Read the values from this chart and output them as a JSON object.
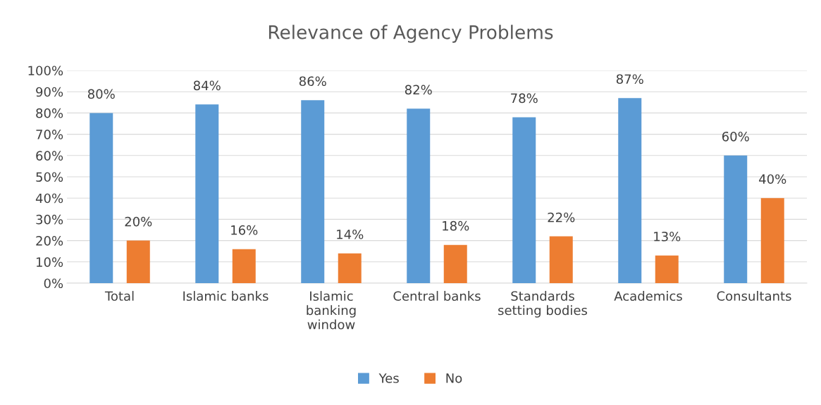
{
  "chart_data": {
    "type": "bar",
    "title": "Relevance of Agency Problems",
    "categories": [
      "Total",
      "Islamic banks",
      "Islamic\nbanking\nwindow",
      "Central banks",
      "Standards\nsetting bodies",
      "Academics",
      "Consultants"
    ],
    "series": [
      {
        "name": "Yes",
        "color": "#5b9bd5",
        "values": [
          80,
          84,
          86,
          82,
          78,
          87,
          60
        ],
        "value_labels": [
          "80%",
          "84%",
          "86%",
          "82%",
          "78%",
          "87%",
          "60%"
        ]
      },
      {
        "name": "No",
        "color": "#ed7d31",
        "values": [
          20,
          16,
          14,
          18,
          22,
          13,
          40
        ],
        "value_labels": [
          "20%",
          "16%",
          "14%",
          "18%",
          "22%",
          "13%",
          "40%"
        ]
      }
    ],
    "ylim": [
      0,
      100
    ],
    "yticks": [
      {
        "value": 0,
        "label": "0%"
      },
      {
        "value": 10,
        "label": "10%"
      },
      {
        "value": 20,
        "label": "20%"
      },
      {
        "value": 30,
        "label": "30%"
      },
      {
        "value": 40,
        "label": "40%"
      },
      {
        "value": 50,
        "label": "50%"
      },
      {
        "value": 60,
        "label": "60%"
      },
      {
        "value": 70,
        "label": "70%"
      },
      {
        "value": 80,
        "label": "80%"
      },
      {
        "value": 90,
        "label": "90%"
      },
      {
        "value": 100,
        "label": "100%"
      }
    ],
    "grid": "y",
    "legend": "bottom"
  }
}
